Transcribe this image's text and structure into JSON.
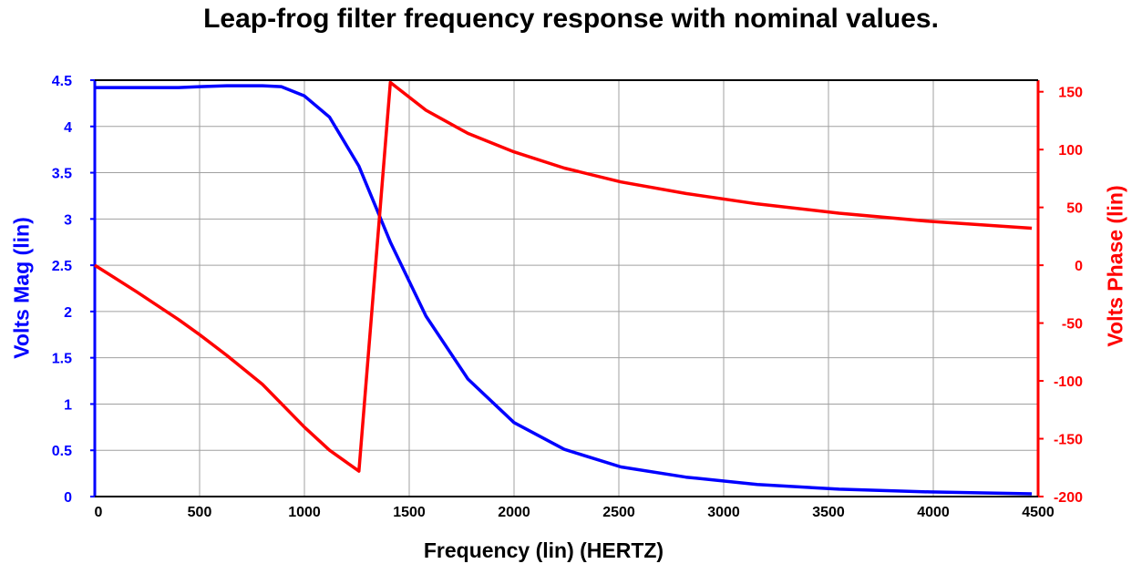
{
  "chart_data": {
    "type": "line",
    "title": "Leap-frog filter frequency response with nominal values.",
    "xlabel": "Frequency (lin) (HERTZ)",
    "ylabel_left": "Volts Mag (lin)",
    "ylabel_right": "Volts Phase (lin)",
    "xlim": [
      0,
      4500
    ],
    "ylim_left": [
      0,
      4.5
    ],
    "ylim_right": [
      -200,
      160
    ],
    "x_ticks": [
      "0",
      "500",
      "1000",
      "1500",
      "2000",
      "2500",
      "3000",
      "3500",
      "4000",
      "4500"
    ],
    "y_left_ticks": [
      "0",
      "0.5",
      "1",
      "1.5",
      "2",
      "2.5",
      "3",
      "3.5",
      "4",
      "4.5"
    ],
    "y_right_ticks": [
      "-200",
      "-150",
      "-100",
      "-50",
      "0",
      "50",
      "100",
      "150"
    ],
    "grid": true,
    "series": [
      {
        "name": "Volts Mag",
        "axis": "left",
        "color": "#0000ff",
        "x": [
          0,
          100,
          200,
          315,
          400,
          500,
          630,
          700,
          800,
          890,
          1000,
          1120,
          1260,
          1410,
          1580,
          1780,
          2000,
          2240,
          2510,
          2820,
          3160,
          3550,
          3980,
          4470
        ],
        "values": [
          4.42,
          4.42,
          4.42,
          4.42,
          4.42,
          4.43,
          4.44,
          4.44,
          4.44,
          4.43,
          4.33,
          4.1,
          3.57,
          2.75,
          1.95,
          1.27,
          0.8,
          0.51,
          0.32,
          0.21,
          0.13,
          0.08,
          0.05,
          0.03
        ]
      },
      {
        "name": "Volts Phase",
        "axis": "right",
        "color": "#ff0000",
        "x": [
          0,
          200,
          400,
          500,
          630,
          800,
          1000,
          1120,
          1260,
          1410,
          1580,
          1780,
          2000,
          2240,
          2510,
          2820,
          3160,
          3550,
          3980,
          4470
        ],
        "values": [
          0,
          -23,
          -47,
          -60,
          -78,
          -103,
          -140,
          -160,
          -178,
          158,
          134,
          114,
          98,
          84,
          72,
          62,
          53,
          45,
          38,
          32
        ]
      }
    ]
  }
}
